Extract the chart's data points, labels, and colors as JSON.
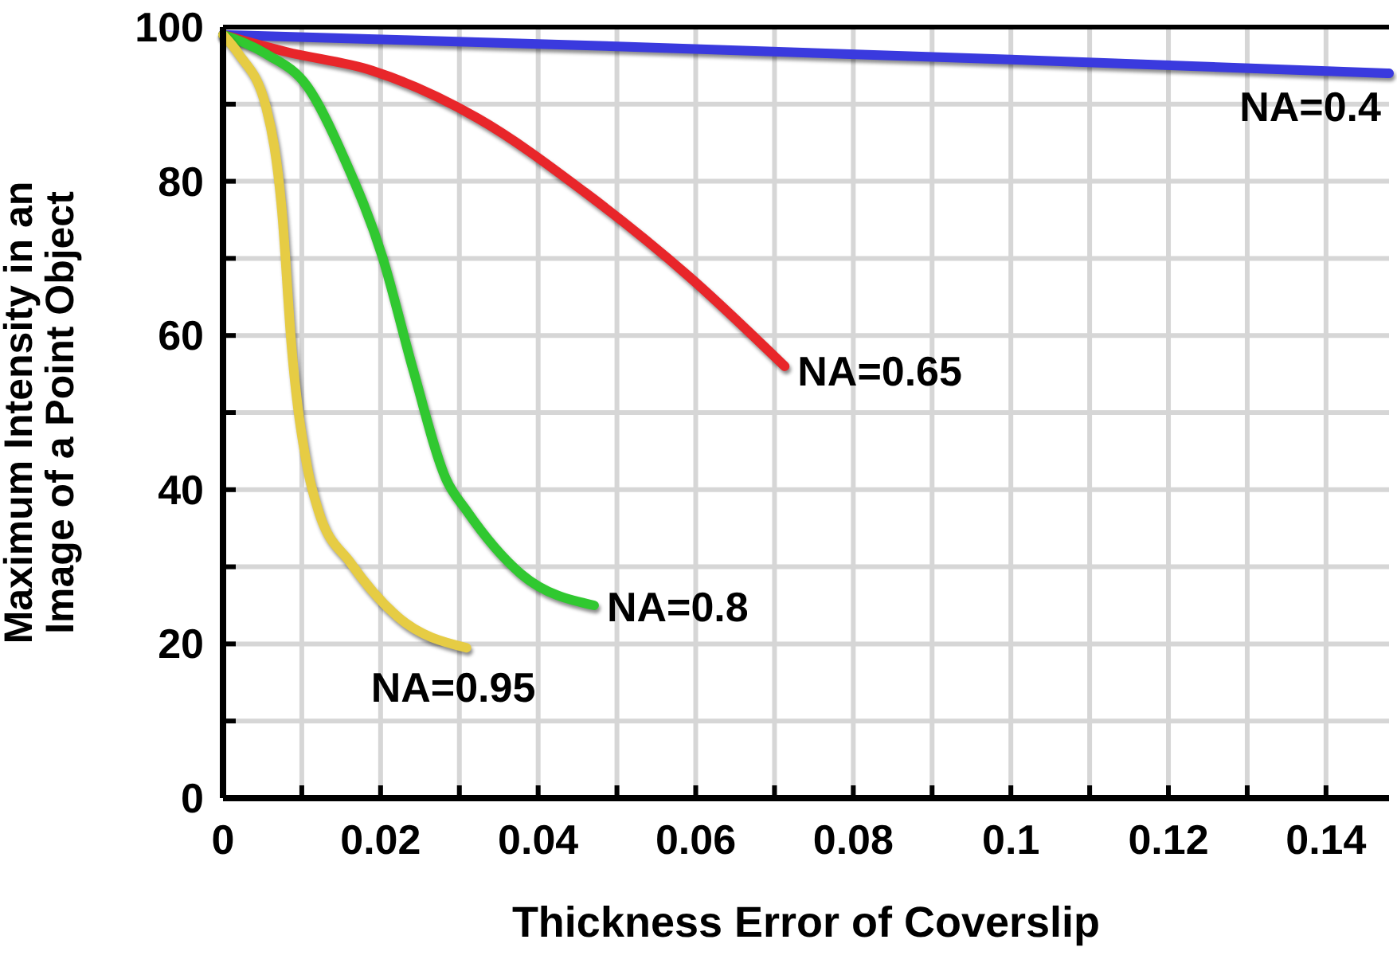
{
  "chart_data": {
    "type": "line",
    "xlabel": "Thickness Error of Coverslip",
    "ylabel": "Maximum Intensity in an Image of a Point Object",
    "xlim": [
      0,
      0.148
    ],
    "ylim": [
      0,
      100
    ],
    "xticks": [
      0,
      {
        "value": 0.01,
        "label": null
      },
      0.02,
      {
        "value": 0.03,
        "label": null
      },
      0.04,
      {
        "value": 0.05,
        "label": null
      },
      0.06,
      {
        "value": 0.07,
        "label": null
      },
      0.08,
      {
        "value": 0.09,
        "label": null
      },
      0.1,
      {
        "value": 0.11,
        "label": null
      },
      0.12,
      {
        "value": 0.13,
        "label": null
      },
      0.14
    ],
    "yticks": [
      0,
      {
        "value": 10,
        "label": null
      },
      20,
      {
        "value": 30,
        "label": null
      },
      40,
      {
        "value": 50,
        "label": null
      },
      60,
      {
        "value": 70,
        "label": null
      },
      80,
      {
        "value": 90,
        "label": null
      },
      100
    ],
    "grid": true,
    "marker": "none",
    "line_style": "solid",
    "series": [
      {
        "name": "NA=0.4",
        "color": "#3a3ade",
        "x": [
          0,
          0.05,
          0.1,
          0.148
        ],
        "values": [
          99,
          97.5,
          95.8,
          94
        ]
      },
      {
        "name": "NA=0.65",
        "color": "#e8262a",
        "x": [
          0,
          0.008,
          0.0188,
          0.0323,
          0.0459,
          0.0592,
          0.0713
        ],
        "values": [
          99,
          96.8,
          94.4,
          88.2,
          78.6,
          67.6,
          56
        ]
      },
      {
        "name": "NA=0.8",
        "color": "#30c830",
        "x": [
          0,
          0.0055,
          0.0107,
          0.0155,
          0.0202,
          0.0242,
          0.0283,
          0.0309,
          0.0378,
          0.0471
        ],
        "values": [
          99,
          96.5,
          92.3,
          82.7,
          70.3,
          55.3,
          41.4,
          37.3,
          29.1,
          25
        ]
      },
      {
        "name": "NA=0.95",
        "color": "#e6cc44",
        "x": [
          0,
          0.002,
          0.0055,
          0.0075,
          0.0087,
          0.0107,
          0.0121,
          0.0162,
          0.0222,
          0.0309
        ],
        "values": [
          99,
          96.5,
          89.5,
          75.9,
          58.6,
          42.9,
          37.3,
          30.5,
          23.5,
          19.5
        ]
      }
    ]
  }
}
